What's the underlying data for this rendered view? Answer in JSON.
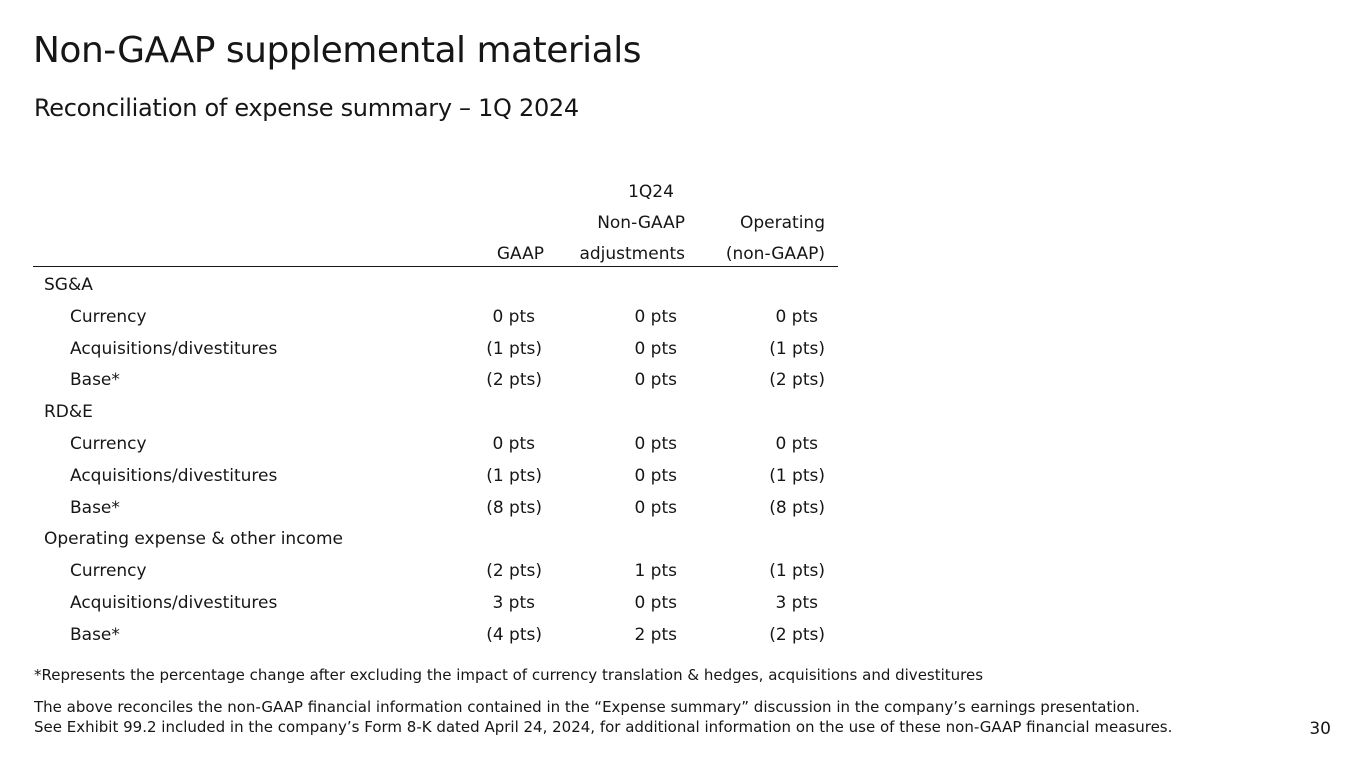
{
  "title": "Non-GAAP supplemental materials",
  "subtitle": "Reconciliation of expense summary – 1Q 2024",
  "table": {
    "period": "1Q24",
    "columns": {
      "gaap": "GAAP",
      "adj_line1": "Non-GAAP",
      "adj_line2": "adjustments",
      "op_line1": "Operating",
      "op_line2": "(non-GAAP)"
    },
    "rows": [
      {
        "label": "SG&A",
        "indent": false,
        "gaap": "",
        "adj": "",
        "op": ""
      },
      {
        "label": "Currency",
        "indent": true,
        "gaap": "0 pts",
        "adj": "0 pts",
        "op": "0 pts"
      },
      {
        "label": "Acquisitions/divestitures",
        "indent": true,
        "gaap": "(1 pts)",
        "adj": "0 pts",
        "op": "(1 pts)"
      },
      {
        "label": "Base*",
        "indent": true,
        "gaap": "(2 pts)",
        "adj": "0 pts",
        "op": "(2 pts)"
      },
      {
        "label": "RD&E",
        "indent": false,
        "gaap": "",
        "adj": "",
        "op": ""
      },
      {
        "label": "Currency",
        "indent": true,
        "gaap": "0 pts",
        "adj": "0 pts",
        "op": "0 pts"
      },
      {
        "label": "Acquisitions/divestitures",
        "indent": true,
        "gaap": "(1 pts)",
        "adj": "0 pts",
        "op": "(1 pts)"
      },
      {
        "label": "Base*",
        "indent": true,
        "gaap": "(8 pts)",
        "adj": "0 pts",
        "op": "(8 pts)"
      },
      {
        "label": "Operating expense & other income",
        "indent": false,
        "gaap": "",
        "adj": "",
        "op": ""
      },
      {
        "label": "Currency",
        "indent": true,
        "gaap": "(2 pts)",
        "adj": "1 pts",
        "op": "(1 pts)"
      },
      {
        "label": "Acquisitions/divestitures",
        "indent": true,
        "gaap": "3 pts",
        "adj": "0 pts",
        "op": "3 pts"
      },
      {
        "label": "Base*",
        "indent": true,
        "gaap": "(4 pts)",
        "adj": "2 pts",
        "op": "(2 pts)"
      }
    ]
  },
  "footnotes": {
    "asterisk": "*Represents the percentage change after excluding the impact of currency translation & hedges, acquisitions and divestitures",
    "line1": "The above reconciles the non-GAAP financial information contained in the “Expense summary” discussion in the company’s earnings presentation.",
    "line2": "See Exhibit 99.2 included in the company’s Form 8-K dated April 24, 2024, for additional information on the use of these non-GAAP financial measures."
  },
  "page_number": "30"
}
